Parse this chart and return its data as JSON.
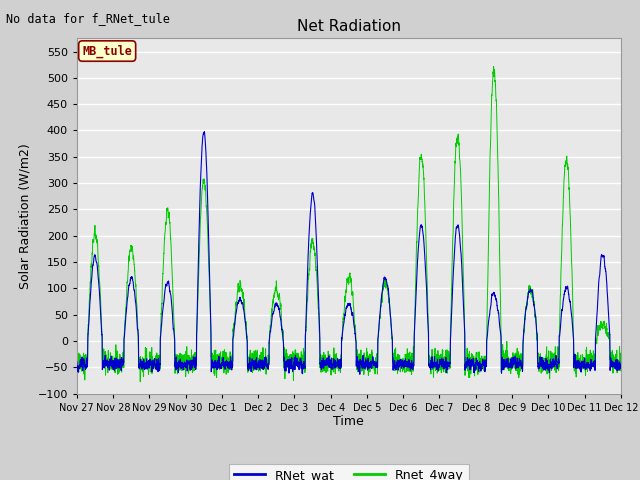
{
  "title": "Net Radiation",
  "xlabel": "Time",
  "ylabel": "Solar Radiation (W/m2)",
  "ylim": [
    -100,
    575
  ],
  "yticks": [
    -100,
    -50,
    0,
    50,
    100,
    150,
    200,
    250,
    300,
    350,
    400,
    450,
    500,
    550
  ],
  "annotation_text": "No data for f_RNet_tule",
  "box_label": "MB_tule",
  "legend_labels": [
    "RNet_wat",
    "Rnet_4way"
  ],
  "line_colors": [
    "#0000cc",
    "#00cc00"
  ],
  "fig_bg": "#d0d0d0",
  "plot_bg": "#e8e8e8",
  "xtick_labels": [
    "Nov 27",
    "Nov 28",
    "Nov 29",
    "Nov 30",
    "Dec 1",
    "Dec 2",
    "Dec 3",
    "Dec 4",
    "Dec 5",
    "Dec 6",
    "Dec 7",
    "Dec 8",
    "Dec 9",
    "Dec 10",
    "Dec 11",
    "Dec 12"
  ],
  "day_peaks_wat": [
    160,
    120,
    110,
    400,
    80,
    70,
    280,
    70,
    120,
    220,
    220,
    90,
    100,
    100,
    165,
    0
  ],
  "day_peaks_4way": [
    205,
    175,
    245,
    305,
    105,
    100,
    190,
    115,
    115,
    355,
    390,
    515,
    100,
    345,
    30,
    0
  ],
  "night_base": -40,
  "night_noise": 10
}
